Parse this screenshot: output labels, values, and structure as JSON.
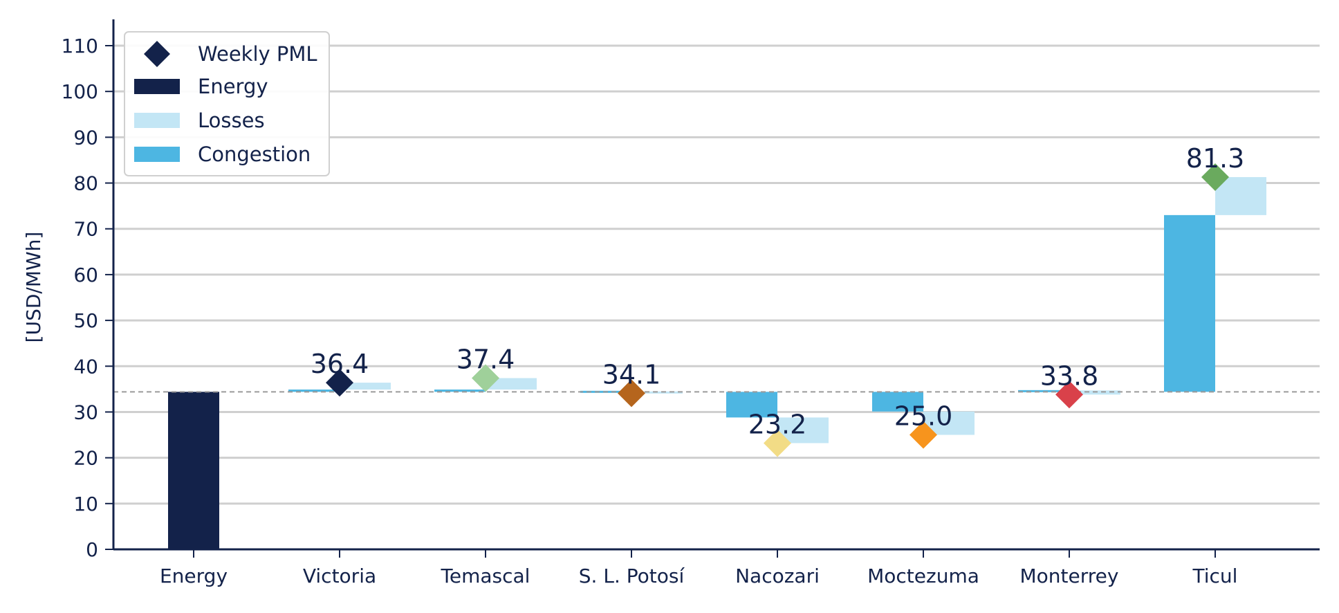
{
  "chart_data": {
    "type": "bar",
    "title": "",
    "xlabel": "",
    "ylabel": "[USD/MWh]",
    "ylim": [
      0,
      110
    ],
    "yticks": [
      0,
      10,
      20,
      30,
      40,
      50,
      60,
      70,
      80,
      90,
      100,
      110
    ],
    "grid": "horizontal",
    "legend_position": "top-left",
    "reference_line": 34.4,
    "categories": [
      "Energy",
      "Victoria",
      "Temascal",
      "S. L. Potosí",
      "Nacozari",
      "Moctezuma",
      "Monterrey",
      "Ticul"
    ],
    "energy_value": 34.4,
    "nodes": [
      {
        "name": "Victoria",
        "congestion": 0.5,
        "losses": 1.5,
        "pml": 36.4,
        "pml_label": "36.4",
        "marker_color": "#13224a"
      },
      {
        "name": "Temascal",
        "congestion": 0.5,
        "losses": 2.5,
        "pml": 37.4,
        "pml_label": "37.4",
        "marker_color": "#9fd09a"
      },
      {
        "name": "S. L. Potosí",
        "congestion": 0.0,
        "losses": -0.3,
        "pml": 34.1,
        "pml_label": "34.1",
        "marker_color": "#b5651d"
      },
      {
        "name": "Nacozari",
        "congestion": -5.6,
        "losses": -5.6,
        "pml": 23.2,
        "pml_label": "23.2",
        "marker_color": "#f2dc86"
      },
      {
        "name": "Moctezuma",
        "congestion": -4.3,
        "losses": -5.1,
        "pml": 25.0,
        "pml_label": "25.0",
        "marker_color": "#f7941d"
      },
      {
        "name": "Monterrey",
        "congestion": 0.3,
        "losses": -0.9,
        "pml": 33.8,
        "pml_label": "33.8",
        "marker_color": "#d9414a"
      },
      {
        "name": "Ticul",
        "congestion": 38.6,
        "losses": 8.3,
        "pml": 81.3,
        "pml_label": "81.3",
        "marker_color": "#6aaa5e"
      }
    ],
    "legend": [
      {
        "label": "Weekly PML",
        "kind": "marker"
      },
      {
        "label": "Energy",
        "kind": "bar"
      },
      {
        "label": "Losses",
        "kind": "bar"
      },
      {
        "label": "Congestion",
        "kind": "bar"
      }
    ],
    "colors": {
      "energy": "#13224a",
      "losses": "#c3e6f5",
      "congestion": "#4db6e2",
      "axis": "#13224a",
      "grid": "#cfcfcf",
      "reference": "#9a9a9a"
    }
  }
}
